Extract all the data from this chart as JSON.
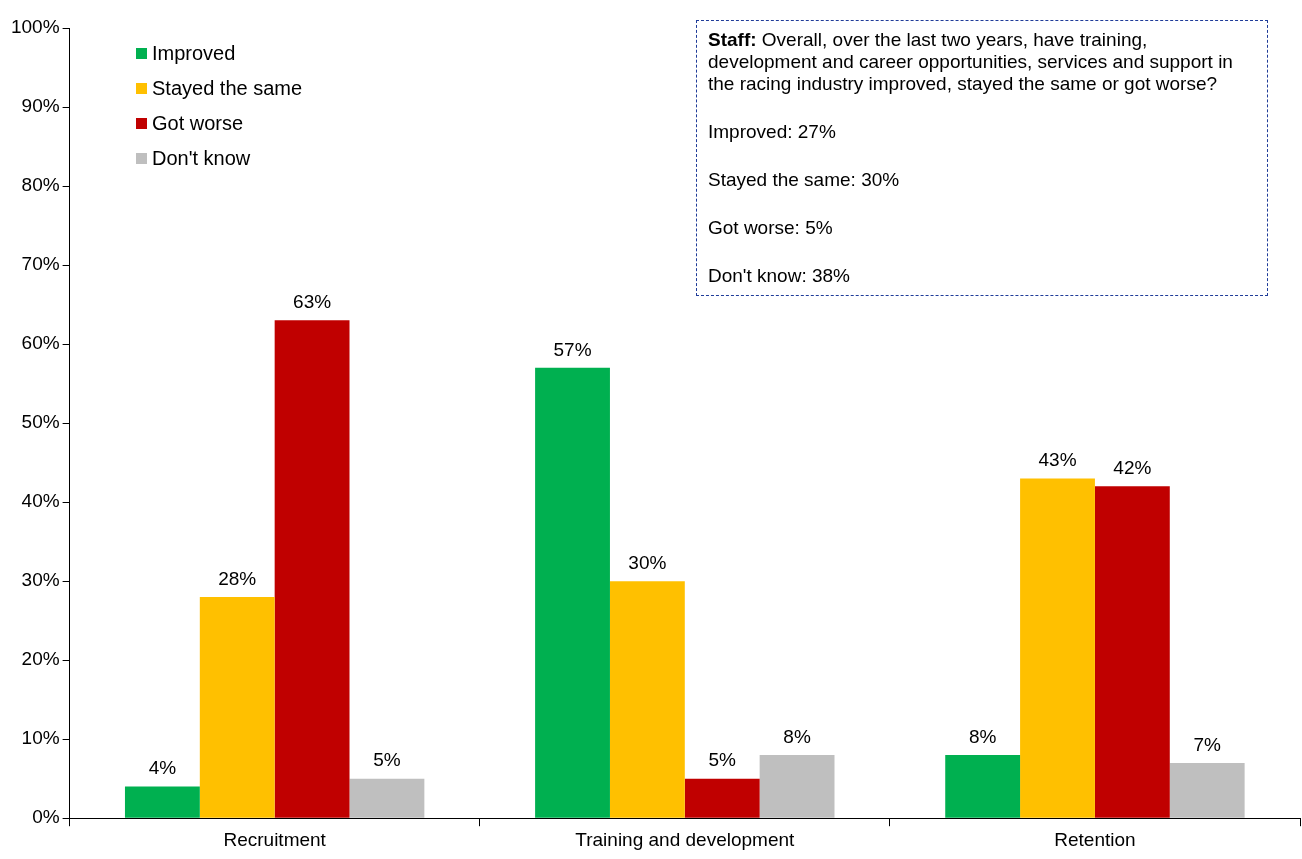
{
  "chart_data": {
    "type": "bar",
    "categories": [
      "Recruitment",
      "Training and development",
      "Retention"
    ],
    "series": [
      {
        "name": "Improved",
        "color": "#00b050",
        "values": [
          4,
          57,
          8
        ],
        "value_labels": [
          "4%",
          "57%",
          "8%"
        ]
      },
      {
        "name": "Stayed the same",
        "color": "#ffc000",
        "values": [
          28,
          30,
          43
        ],
        "value_labels": [
          "28%",
          "30%",
          "43%"
        ]
      },
      {
        "name": "Got worse",
        "color": "#c00000",
        "values": [
          63,
          5,
          42
        ],
        "value_labels": [
          "63%",
          "5%",
          "42%"
        ]
      },
      {
        "name": "Don't know",
        "color": "#bfbfbf",
        "values": [
          5,
          8,
          7
        ],
        "value_labels": [
          "5%",
          "8%",
          "7%"
        ]
      }
    ],
    "ylim": [
      0,
      100
    ],
    "yticks": [
      {
        "value": 0,
        "label": "0%"
      },
      {
        "value": 10,
        "label": "10%"
      },
      {
        "value": 20,
        "label": "20%"
      },
      {
        "value": 30,
        "label": "30%"
      },
      {
        "value": 40,
        "label": "40%"
      },
      {
        "value": 50,
        "label": "50%"
      },
      {
        "value": 60,
        "label": "60%"
      },
      {
        "value": 70,
        "label": "70%"
      },
      {
        "value": 80,
        "label": "80%"
      },
      {
        "value": 90,
        "label": "90%"
      },
      {
        "value": 100,
        "label": "100%"
      }
    ],
    "grid": false,
    "legend": "top left",
    "annotations": [
      "Staff:",
      "Overall, over the last two years, have training, development and career opportunities, services and support in the racing industry improved, stayed the same or got worse?",
      "Improved: 27%",
      "Stayed the same: 30%",
      "Got worse: 5%",
      "Don't know: 38%"
    ]
  }
}
